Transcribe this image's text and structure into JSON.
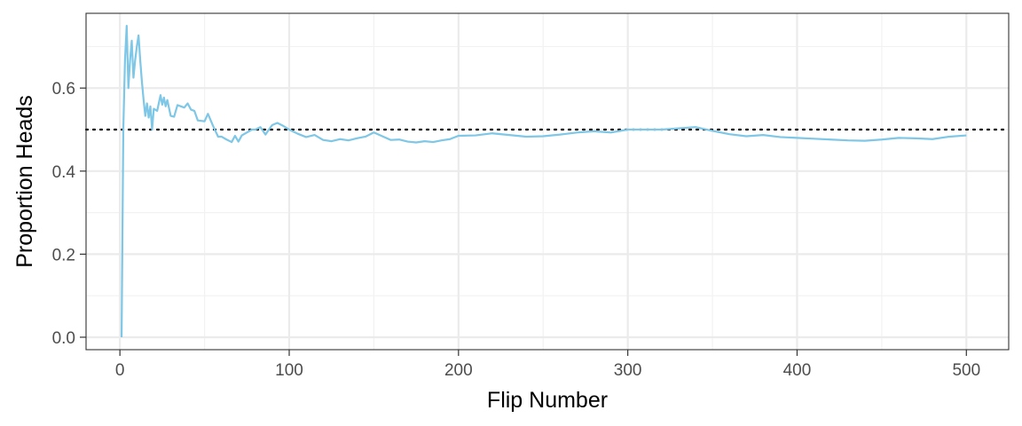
{
  "chart_data": {
    "type": "line",
    "title": "",
    "xlabel": "Flip Number",
    "ylabel": "Proportion Heads",
    "xlim": [
      -20,
      525
    ],
    "ylim": [
      -0.03,
      0.78
    ],
    "x_ticks": [
      0,
      100,
      200,
      300,
      400,
      500
    ],
    "x_tick_labels": [
      "0",
      "100",
      "200",
      "300",
      "400",
      "500"
    ],
    "y_ticks": [
      0.0,
      0.2,
      0.4,
      0.6
    ],
    "y_tick_labels": [
      "0.0",
      "0.2",
      "0.4",
      "0.6"
    ],
    "grid": true,
    "legend": "none",
    "reference_line": {
      "y": 0.5,
      "style": "dotted",
      "color": "#000000"
    },
    "series": [
      {
        "color": "#7ec7e6",
        "x": [
          1,
          2,
          3,
          4,
          5,
          6,
          7,
          8,
          9,
          10,
          11,
          12,
          13,
          14,
          15,
          16,
          17,
          18,
          19,
          20,
          22,
          24,
          25,
          26,
          27,
          28,
          30,
          32,
          34,
          36,
          38,
          40,
          42,
          44,
          46,
          48,
          50,
          52,
          55,
          58,
          60,
          63,
          66,
          68,
          70,
          72,
          75,
          78,
          80,
          83,
          86,
          88,
          90,
          93,
          96,
          100,
          105,
          110,
          115,
          120,
          125,
          130,
          135,
          140,
          145,
          150,
          155,
          160,
          165,
          170,
          175,
          180,
          185,
          190,
          195,
          200,
          210,
          220,
          230,
          240,
          250,
          260,
          270,
          280,
          290,
          300,
          310,
          320,
          330,
          340,
          350,
          360,
          370,
          380,
          390,
          400,
          410,
          420,
          430,
          440,
          450,
          460,
          470,
          480,
          490,
          500
        ],
        "y": [
          0.0,
          0.5,
          0.667,
          0.75,
          0.6,
          0.667,
          0.714,
          0.625,
          0.667,
          0.7,
          0.727,
          0.667,
          0.615,
          0.571,
          0.533,
          0.563,
          0.529,
          0.556,
          0.5,
          0.55,
          0.545,
          0.583,
          0.56,
          0.577,
          0.556,
          0.571,
          0.533,
          0.531,
          0.559,
          0.556,
          0.553,
          0.563,
          0.548,
          0.545,
          0.522,
          0.521,
          0.52,
          0.538,
          0.509,
          0.483,
          0.483,
          0.476,
          0.47,
          0.485,
          0.471,
          0.486,
          0.493,
          0.5,
          0.5,
          0.506,
          0.488,
          0.5,
          0.511,
          0.516,
          0.51,
          0.5,
          0.49,
          0.482,
          0.487,
          0.475,
          0.472,
          0.477,
          0.474,
          0.479,
          0.483,
          0.493,
          0.484,
          0.475,
          0.476,
          0.471,
          0.469,
          0.472,
          0.47,
          0.474,
          0.477,
          0.485,
          0.486,
          0.491,
          0.487,
          0.483,
          0.484,
          0.488,
          0.493,
          0.496,
          0.493,
          0.5,
          0.5,
          0.5,
          0.503,
          0.506,
          0.497,
          0.489,
          0.484,
          0.487,
          0.482,
          0.48,
          0.478,
          0.476,
          0.474,
          0.473,
          0.476,
          0.48,
          0.479,
          0.477,
          0.483,
          0.486
        ]
      }
    ]
  }
}
